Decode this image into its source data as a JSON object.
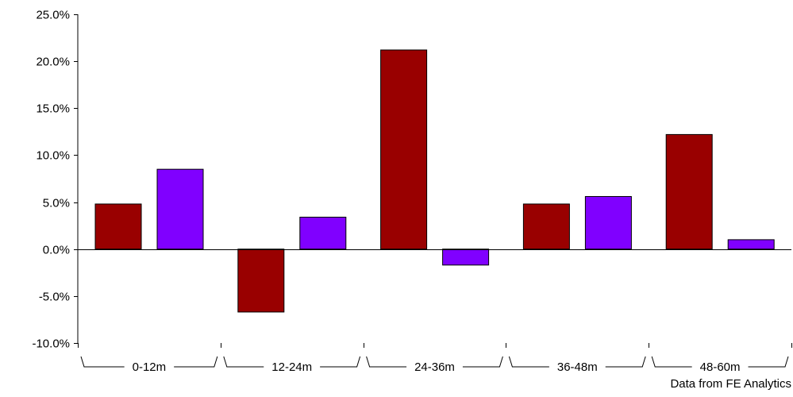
{
  "chart_data": {
    "type": "bar",
    "categories": [
      "0-12m",
      "12-24m",
      "24-36m",
      "36-48m",
      "48-60m"
    ],
    "series": [
      {
        "values": [
          4.8,
          -6.7,
          21.2,
          4.8,
          12.2
        ],
        "color": "#990000"
      },
      {
        "values": [
          8.5,
          3.4,
          -1.7,
          5.6,
          1.0
        ],
        "color": "#8000ff"
      }
    ],
    "y_ticks": [
      25,
      20,
      15,
      10,
      5,
      0,
      -5,
      -10
    ],
    "y_tick_labels": [
      "25.0%",
      "20.0%",
      "15.0%",
      "10.0%",
      "5.0%",
      "0.0%",
      "-5.0%",
      "-10.0%"
    ],
    "ylim": [
      -10,
      25
    ],
    "grid": false,
    "legend": "none",
    "source_note": "Data from FE Analytics"
  }
}
